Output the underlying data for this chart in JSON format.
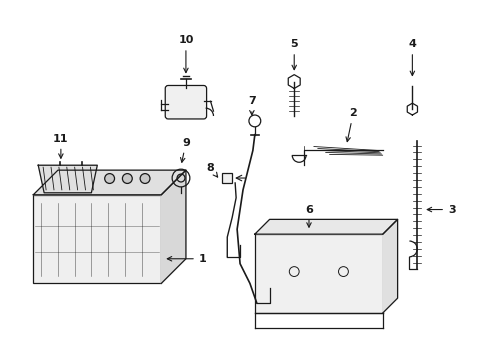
{
  "bg_color": "#ffffff",
  "line_color": "#1a1a1a",
  "fig_w": 4.89,
  "fig_h": 3.6,
  "dpi": 100
}
